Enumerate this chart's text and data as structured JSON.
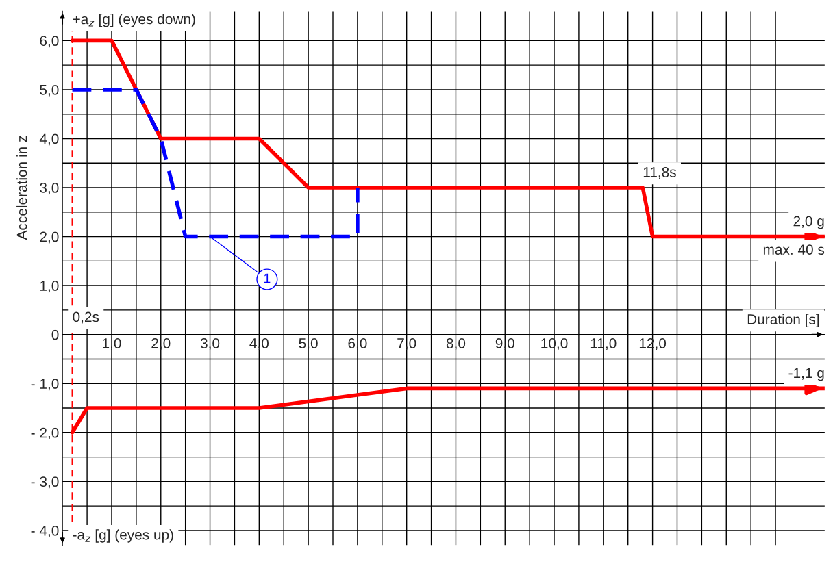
{
  "chart_data": {
    "type": "line",
    "xlabel": "Duration [s]",
    "ylabel": "Acceleration in z",
    "xlim": [
      0,
      15.5
    ],
    "ylim": [
      -4.3,
      6.6
    ],
    "xticks": [
      {
        "value": 0.5,
        "label": null
      },
      {
        "value": 1,
        "label": "1,0"
      },
      {
        "value": 1.5,
        "label": null
      },
      {
        "value": 2,
        "label": "2,0"
      },
      {
        "value": 2.5,
        "label": null
      },
      {
        "value": 3,
        "label": "3,0"
      },
      {
        "value": 3.5,
        "label": null
      },
      {
        "value": 4,
        "label": "4,0"
      },
      {
        "value": 4.5,
        "label": null
      },
      {
        "value": 5,
        "label": "5,0"
      },
      {
        "value": 5.5,
        "label": null
      },
      {
        "value": 6,
        "label": "6,0"
      },
      {
        "value": 6.5,
        "label": null
      },
      {
        "value": 7,
        "label": "7,0"
      },
      {
        "value": 7.5,
        "label": null
      },
      {
        "value": 8,
        "label": "8,0"
      },
      {
        "value": 8.5,
        "label": null
      },
      {
        "value": 9,
        "label": "9,0"
      },
      {
        "value": 9.5,
        "label": null
      },
      {
        "value": 10,
        "label": "10,0"
      },
      {
        "value": 10.5,
        "label": null
      },
      {
        "value": 11,
        "label": "11,0"
      },
      {
        "value": 11.5,
        "label": null
      },
      {
        "value": 12,
        "label": "12,0"
      },
      {
        "value": 12.5,
        "label": null
      },
      {
        "value": 13,
        "label": null
      },
      {
        "value": 13.5,
        "label": null
      },
      {
        "value": 14,
        "label": null
      },
      {
        "value": 14.5,
        "label": null
      }
    ],
    "yticks": [
      {
        "value": -4,
        "label": "- 4,0"
      },
      {
        "value": -3.5,
        "label": null
      },
      {
        "value": -3,
        "label": "- 3,0"
      },
      {
        "value": -2.5,
        "label": null
      },
      {
        "value": -2,
        "label": "- 2,0"
      },
      {
        "value": -1.5,
        "label": null
      },
      {
        "value": -1,
        "label": "- 1,0"
      },
      {
        "value": -0.5,
        "label": null
      },
      {
        "value": 0,
        "label": "0"
      },
      {
        "value": 0.5,
        "label": null
      },
      {
        "value": 1,
        "label": "1,0"
      },
      {
        "value": 1.5,
        "label": null
      },
      {
        "value": 2,
        "label": "2,0"
      },
      {
        "value": 2.5,
        "label": null
      },
      {
        "value": 3,
        "label": "3,0"
      },
      {
        "value": 3.5,
        "label": null
      },
      {
        "value": 4,
        "label": "4,0"
      },
      {
        "value": 4.5,
        "label": null
      },
      {
        "value": 5,
        "label": "5,0"
      },
      {
        "value": 5.5,
        "label": null
      },
      {
        "value": 6,
        "label": "6,0"
      }
    ],
    "grid": true,
    "legend": false,
    "series": [
      {
        "color": "#ff0000",
        "line_style": "solid",
        "x": [
          0.2,
          1.0,
          2.0,
          4.0,
          5.0,
          11.8,
          12.0,
          15.5
        ],
        "values": [
          6,
          6,
          4,
          4,
          3,
          3,
          2,
          2
        ]
      },
      {
        "color": "#0000ff",
        "line_style": "dashed",
        "x": [
          0.2,
          1.5,
          2.0,
          2.5,
          6.0,
          6.0
        ],
        "values": [
          5,
          5,
          4,
          2,
          2,
          3
        ]
      },
      {
        "color": "#ff0000",
        "line_style": "solid",
        "x": [
          0.2,
          0.5,
          4.0,
          7.0,
          15.5
        ],
        "values": [
          -2,
          -1.5,
          -1.5,
          -1.1,
          -1.1
        ]
      }
    ],
    "ref_lines": [
      {
        "axis": "x",
        "value": 0.2,
        "label": "0,2s",
        "color": "#ff0000",
        "line_style": "dashed"
      }
    ],
    "annotations": [
      "+a$_{z}$ [g] (eyes down)",
      "-a$_{z}$ [g] (eyes up)",
      {
        "text": "1",
        "x": 3.0,
        "y": 2.0
      },
      {
        "text": "11,8s",
        "x": 11.8,
        "y": 3
      },
      {
        "text": "2,0 g",
        "x": 15.5,
        "y": 2
      },
      {
        "text": "max. 40 s",
        "x": 15.5,
        "y": 2
      },
      {
        "text": "-1,1 g",
        "x": 15.5,
        "y": -1.1
      }
    ]
  }
}
